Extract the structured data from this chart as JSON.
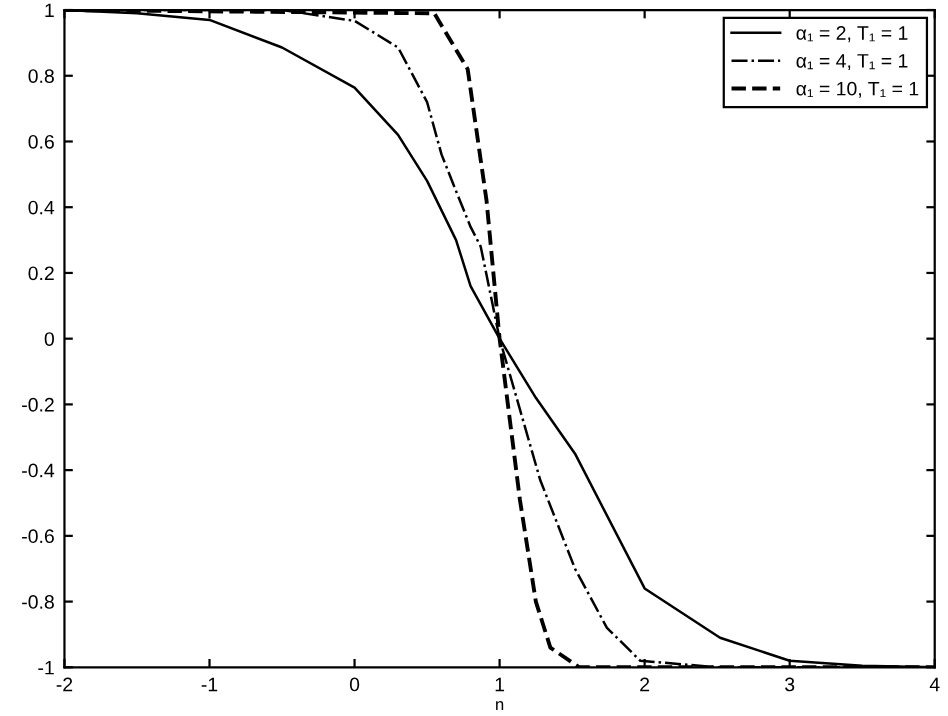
{
  "chart_data": {
    "type": "line",
    "xlabel": "n",
    "xlim": [
      -2,
      4
    ],
    "ylim": [
      -1,
      1
    ],
    "xticks": [
      -2,
      -1,
      0,
      1,
      2,
      3,
      4
    ],
    "yticks": [
      -1,
      -0.8,
      -0.6,
      -0.4,
      -0.2,
      0,
      0.2,
      0.4,
      0.6,
      0.8,
      1
    ],
    "grid": false,
    "legend": "top right",
    "marker": "none",
    "series": [
      {
        "name": "α₁ = 2, T₁ = 1",
        "color": "#000000",
        "line_style": "solid",
        "x": [
          -2,
          -1.5,
          -1,
          -0.5,
          0,
          0.3,
          0.5,
          0.7,
          0.8,
          1,
          1.25,
          1.52,
          2,
          2.52,
          3,
          3.5,
          4
        ],
        "values": [
          1,
          0.99,
          0.97,
          0.886,
          0.764,
          0.62,
          0.48,
          0.3,
          0.16,
          0,
          -0.18,
          -0.35,
          -0.76,
          -0.91,
          -0.98,
          -0.995,
          -1
        ]
      },
      {
        "name": "α₁ = 4, T₁ = 1",
        "color": "#000000",
        "line_style": "dashdot",
        "x": [
          -2,
          -0.5,
          0,
          0.3,
          0.5,
          0.6,
          0.69,
          0.8,
          0.87,
          1,
          1.28,
          1.52,
          1.74,
          1.97,
          2.5,
          4
        ],
        "values": [
          1,
          1,
          0.967,
          0.886,
          0.72,
          0.56,
          0.46,
          0.34,
          0.28,
          0,
          -0.43,
          -0.7,
          -0.88,
          -0.98,
          -1,
          -1
        ]
      },
      {
        "name": "α₁ = 10, T₁ = 1",
        "color": "#000000",
        "line_style": "dashed",
        "x": [
          -2,
          0.55,
          0.78,
          0.91,
          1,
          1.14,
          1.25,
          1.35,
          1.55,
          4
        ],
        "values": [
          1,
          0.99,
          0.82,
          0.42,
          0,
          -0.49,
          -0.8,
          -0.94,
          -1,
          -1
        ]
      }
    ]
  }
}
